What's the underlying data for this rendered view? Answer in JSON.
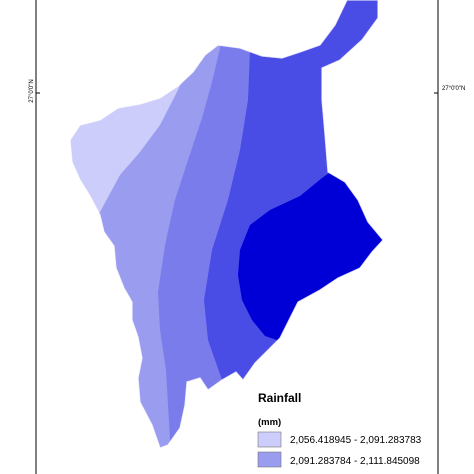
{
  "map": {
    "latitude_label_left": "27°0'0\"N",
    "latitude_label_right": "27°0'0\"N"
  },
  "legend": {
    "title": "Rainfall",
    "unit": "(mm)",
    "classes": [
      {
        "label": "2,056.418945 - 2,091.283783",
        "color": "#cccdfa"
      },
      {
        "label": "2,091.283784 - 2,111.845098",
        "color": "#9a9cf0"
      }
    ]
  },
  "zone_colors": {
    "lightest": "#cccdfa",
    "light": "#9a9cf0",
    "medium": "#7b7cec",
    "dark": "#4a4ce6",
    "darkest": "#0000d6"
  }
}
